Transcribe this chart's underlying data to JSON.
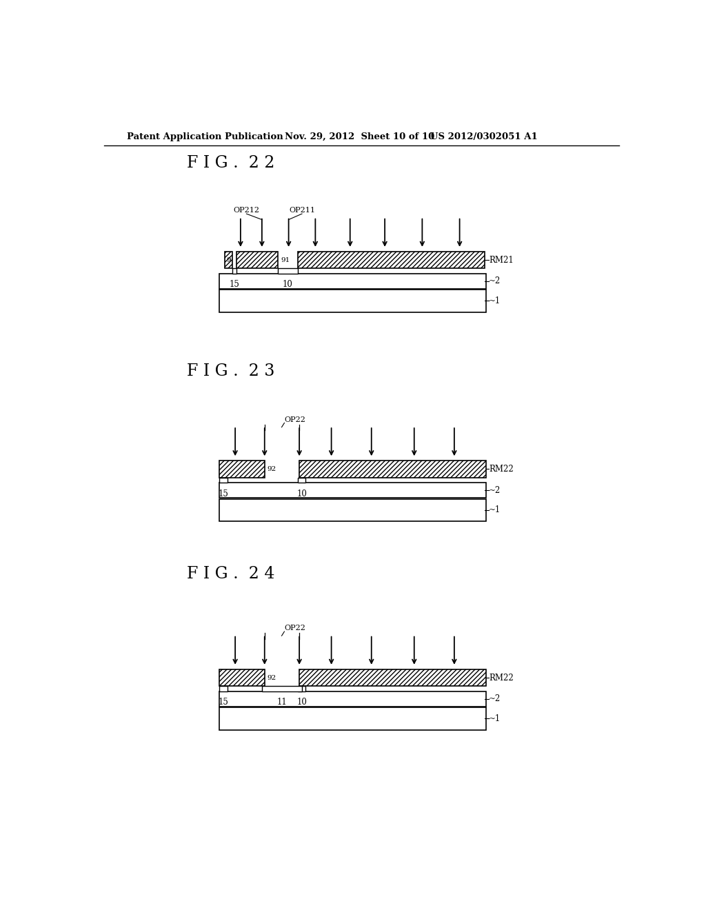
{
  "header_left": "Patent Application Publication",
  "header_middle": "Nov. 29, 2012  Sheet 10 of 10",
  "header_right": "US 2012/0302051 A1",
  "fig22_label": "F I G .  2 2",
  "fig23_label": "F I G .  2 3",
  "fig24_label": "F I G .  2 4",
  "bg_color": "#ffffff",
  "line_color": "#000000"
}
